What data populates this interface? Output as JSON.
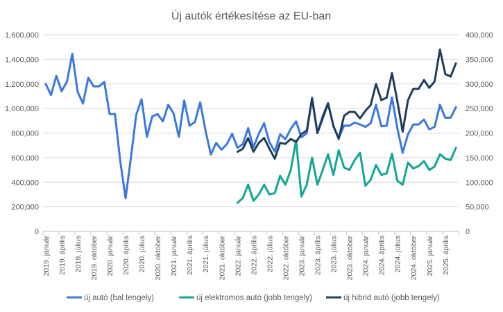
{
  "chart_data": {
    "type": "line",
    "title": "Új autók értékesítése az EU-ban",
    "x_tick_labels": [
      "2019. január",
      "2019. április",
      "2019. július",
      "2019. október",
      "2020. január",
      "2020. április",
      "2020. július",
      "2020. október",
      "2021. január",
      "2021. április",
      "2021. július",
      "2021. október",
      "2022. január",
      "2022. április",
      "2022. július",
      "2022. október",
      "2023. január",
      "2023. április",
      "2023. július",
      "2023. október",
      "2024. január",
      "2024. április",
      "2024. július",
      "2024. október",
      "2025. január",
      "2025. április"
    ],
    "y_left": {
      "ylim": [
        0,
        1600000
      ],
      "ticks": [
        "0",
        "200,000",
        "400,000",
        "600,000",
        "800,000",
        "1,000,000",
        "1,200,000",
        "1,400,000",
        "1,600,000"
      ]
    },
    "y_right": {
      "ylim": [
        0,
        400000
      ],
      "ticks": [
        "0",
        "50,000",
        "100,000",
        "150,000",
        "200,000",
        "250,000",
        "300,000",
        "350,000",
        "400,000"
      ]
    },
    "grid": true,
    "legend_position": "bottom",
    "series": [
      {
        "name": "új autó (bal tengely)",
        "axis": "left",
        "color": "#3a78e0",
        "start_index": 0,
        "values": [
          1200000,
          1110000,
          1265000,
          1140000,
          1220000,
          1445000,
          1135000,
          1040000,
          1250000,
          1180000,
          1180000,
          1215000,
          955000,
          955000,
          570000,
          270000,
          600000,
          950000,
          1075000,
          770000,
          935000,
          955000,
          895000,
          1030000,
          960000,
          770000,
          1065000,
          860000,
          890000,
          1050000,
          820000,
          625000,
          720000,
          665000,
          710000,
          795000,
          680000,
          710000,
          840000,
          685000,
          795000,
          880000,
          725000,
          650000,
          790000,
          750000,
          835000,
          895000,
          765000,
          800000,
          1090000,
          800000,
          940000,
          1045000,
          855000,
          760000,
          860000,
          860000,
          885000,
          870000,
          850000,
          880000,
          1030000,
          855000,
          860000,
          1090000,
          840000,
          640000,
          790000,
          870000,
          870000,
          910000,
          830000,
          850000,
          1030000,
          925000,
          925000,
          1010000
        ]
      },
      {
        "name": "új elektromos autó (jobb tengely)",
        "axis": "right",
        "color": "#13a596",
        "start_index": 36,
        "values": [
          58000,
          68000,
          95000,
          62000,
          75000,
          95000,
          75000,
          78000,
          113000,
          95000,
          125000,
          185000,
          71000,
          95000,
          150000,
          95000,
          125000,
          157000,
          115000,
          165000,
          130000,
          125000,
          145000,
          160000,
          93000,
          105000,
          135000,
          115000,
          118000,
          158000,
          103000,
          95000,
          140000,
          128000,
          133000,
          143000,
          125000,
          132000,
          157000,
          148000,
          145000,
          170000
        ]
      },
      {
        "name": "új hibrid autó (jobb tengely)",
        "axis": "right",
        "color": "#1f3c5a",
        "start_index": 36,
        "values": [
          162000,
          168000,
          190000,
          162000,
          180000,
          190000,
          168000,
          148000,
          180000,
          178000,
          188000,
          182000,
          198000,
          205000,
          270000,
          200000,
          230000,
          260000,
          215000,
          188000,
          235000,
          243000,
          243000,
          230000,
          245000,
          257000,
          300000,
          267000,
          272000,
          322000,
          265000,
          203000,
          267000,
          290000,
          290000,
          308000,
          292000,
          305000,
          370000,
          320000,
          315000,
          342000
        ]
      }
    ]
  }
}
